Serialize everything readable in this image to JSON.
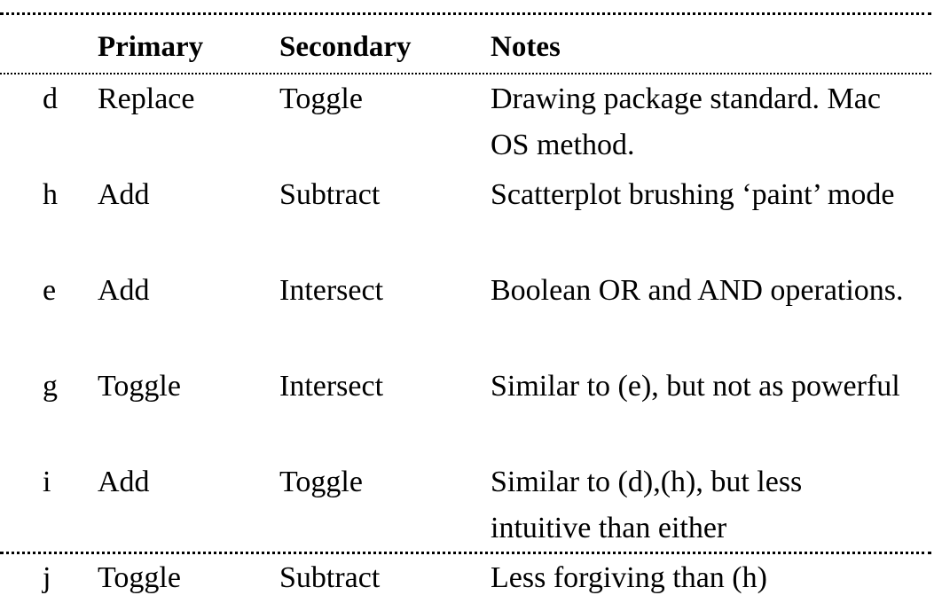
{
  "headers": {
    "primary": "Primary",
    "secondary": "Secondary",
    "notes": "Notes"
  },
  "rows": [
    {
      "id": "d",
      "primary": "Replace",
      "secondary": "Toggle",
      "notes": "Drawing package standard. Mac OS method."
    },
    {
      "id": "h",
      "primary": "Add",
      "secondary": "Subtract",
      "notes": "Scatterplot brushing ‘paint’ mode"
    },
    {
      "id": "e",
      "primary": "Add",
      "secondary": "Intersect",
      "notes": "Boolean OR and AND operations."
    },
    {
      "id": "g",
      "primary": "Toggle",
      "secondary": "Intersect",
      "notes": "Similar to (e), but not as powerful"
    },
    {
      "id": "i",
      "primary": "Add",
      "secondary": "Toggle",
      "notes": "Similar to (d),(h), but less intuitive than either"
    },
    {
      "id": "j",
      "primary": "Toggle",
      "secondary": "Subtract",
      "notes": "Less forgiving than (h)"
    }
  ]
}
